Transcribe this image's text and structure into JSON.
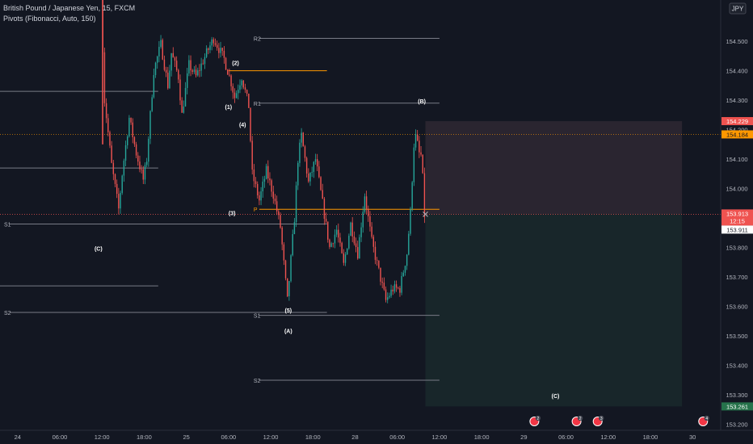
{
  "legend": {
    "symbol": "British Pound / Japanese Yen, 15, FXCM",
    "indicator": "Pivots (Fibonacci, Auto, 150)"
  },
  "currency_button": "JPY",
  "colors": {
    "background": "#131722",
    "up": "#26a69a",
    "down": "#ef5350",
    "text": "#d1d4dc",
    "axis_text": "#b2b5be",
    "pivot_line": "#787b86",
    "orange": "#ff9800",
    "stop_zone": "#2a2530",
    "target_zone": "#18262a",
    "target_badge": "#26734b"
  },
  "chart_data": {
    "type": "candlestick",
    "x_axis": {
      "unit": "hours",
      "ticks": [
        {
          "t": 0,
          "label": "24"
        },
        {
          "t": 6,
          "label": "06:00"
        },
        {
          "t": 12,
          "label": "12:00"
        },
        {
          "t": 18,
          "label": "18:00"
        },
        {
          "t": 24,
          "label": "25"
        },
        {
          "t": 30,
          "label": "06:00"
        },
        {
          "t": 36,
          "label": "12:00"
        },
        {
          "t": 42,
          "label": "18:00"
        },
        {
          "t": 48,
          "label": "28"
        },
        {
          "t": 54,
          "label": "06:00"
        },
        {
          "t": 60,
          "label": "12:00"
        },
        {
          "t": 66,
          "label": "18:00"
        },
        {
          "t": 72,
          "label": "29"
        },
        {
          "t": 78,
          "label": "06:00"
        },
        {
          "t": 84,
          "label": "12:00"
        },
        {
          "t": 90,
          "label": "18:00"
        },
        {
          "t": 96,
          "label": "30"
        }
      ],
      "range": [
        -2.5,
        100
      ]
    },
    "y_axis": {
      "range": [
        153.18,
        154.64
      ],
      "ticks": [
        154.5,
        154.4,
        154.3,
        154.2,
        154.1,
        154.0,
        153.9,
        153.8,
        153.7,
        153.6,
        153.5,
        153.4,
        153.3,
        153.2
      ]
    },
    "price_path": [
      {
        "t": 12.0,
        "p": 154.66
      },
      {
        "t": 12.5,
        "p": 154.3
      },
      {
        "t": 13.5,
        "p": 154.08
      },
      {
        "t": 14.5,
        "p": 153.93
      },
      {
        "t": 15.0,
        "p": 154.05
      },
      {
        "t": 16.0,
        "p": 154.24
      },
      {
        "t": 17.0,
        "p": 154.12
      },
      {
        "t": 18.0,
        "p": 154.03
      },
      {
        "t": 18.5,
        "p": 154.1
      },
      {
        "t": 19.5,
        "p": 154.4
      },
      {
        "t": 20.5,
        "p": 154.49
      },
      {
        "t": 21.5,
        "p": 154.35
      },
      {
        "t": 22.0,
        "p": 154.46
      },
      {
        "t": 23.0,
        "p": 154.38
      },
      {
        "t": 23.5,
        "p": 154.25
      },
      {
        "t": 24.5,
        "p": 154.42
      },
      {
        "t": 25.5,
        "p": 154.38
      },
      {
        "t": 27.0,
        "p": 154.46
      },
      {
        "t": 28.0,
        "p": 154.51
      },
      {
        "t": 29.5,
        "p": 154.44
      },
      {
        "t": 30.5,
        "p": 154.36
      },
      {
        "t": 31.0,
        "p": 154.31
      },
      {
        "t": 32.0,
        "p": 154.38
      },
      {
        "t": 33.0,
        "p": 154.28
      },
      {
        "t": 33.5,
        "p": 154.05
      },
      {
        "t": 34.5,
        "p": 153.96
      },
      {
        "t": 35.5,
        "p": 154.06
      },
      {
        "t": 36.5,
        "p": 153.98
      },
      {
        "t": 37.5,
        "p": 153.87
      },
      {
        "t": 38.5,
        "p": 153.62
      },
      {
        "t": 39.5,
        "p": 153.9
      },
      {
        "t": 40.0,
        "p": 154.1
      },
      {
        "t": 40.5,
        "p": 154.18
      },
      {
        "t": 41.5,
        "p": 154.02
      },
      {
        "t": 42.5,
        "p": 154.1
      },
      {
        "t": 43.5,
        "p": 153.95
      },
      {
        "t": 44.5,
        "p": 153.8
      },
      {
        "t": 45.5,
        "p": 153.86
      },
      {
        "t": 46.5,
        "p": 153.74
      },
      {
        "t": 47.5,
        "p": 153.88
      },
      {
        "t": 48.5,
        "p": 153.78
      },
      {
        "t": 49.5,
        "p": 153.98
      },
      {
        "t": 50.5,
        "p": 153.82
      },
      {
        "t": 51.5,
        "p": 153.72
      },
      {
        "t": 52.5,
        "p": 153.62
      },
      {
        "t": 53.5,
        "p": 153.66
      },
      {
        "t": 54.5,
        "p": 153.66
      },
      {
        "t": 55.5,
        "p": 153.78
      },
      {
        "t": 56.0,
        "p": 153.92
      },
      {
        "t": 56.5,
        "p": 154.15
      },
      {
        "t": 56.8,
        "p": 154.18
      },
      {
        "t": 57.2,
        "p": 154.12
      },
      {
        "t": 57.6,
        "p": 154.11
      },
      {
        "t": 58.0,
        "p": 153.91
      }
    ],
    "pivot_levels": [
      {
        "label": "R2",
        "price": 154.51,
        "t_start": 33,
        "t_end": 60
      },
      {
        "label": "R1",
        "price": 154.29,
        "t_start": 33,
        "t_end": 60
      },
      {
        "label": "P",
        "price": 153.93,
        "t_start": 33,
        "t_end": 60
      },
      {
        "label": "S1",
        "price": 153.57,
        "t_start": 33,
        "t_end": 60
      },
      {
        "label": "S2",
        "price": 153.35,
        "t_start": 33,
        "t_end": 60
      },
      {
        "label": "S1",
        "price": 153.88,
        "t_start": -2.5,
        "t_end": 44
      },
      {
        "label": "S2",
        "price": 153.58,
        "t_start": -2.5,
        "t_end": 44
      }
    ],
    "prior_levels": [
      {
        "price": 154.33,
        "t_start": -2.5,
        "t_end": 20
      },
      {
        "price": 154.07,
        "t_start": -2.5,
        "t_end": 20
      },
      {
        "price": 153.67,
        "t_start": -2.5,
        "t_end": 20
      }
    ],
    "orange_levels": [
      {
        "price": 154.4,
        "t_start": 30,
        "t_end": 44
      }
    ],
    "wave_labels": [
      {
        "label": "(A)",
        "t": 8.5,
        "p": 154.68
      },
      {
        "label": "(C)",
        "t": 11.5,
        "p": 153.79
      },
      {
        "label": "(2)",
        "t": 31.0,
        "p": 154.42
      },
      {
        "label": "(1)",
        "t": 30.0,
        "p": 154.27
      },
      {
        "label": "(4)",
        "t": 32.0,
        "p": 154.21
      },
      {
        "label": "(3)",
        "t": 30.5,
        "p": 153.91
      },
      {
        "label": "(5)",
        "t": 38.5,
        "p": 153.58
      },
      {
        "label": "(A)",
        "t": 38.5,
        "p": 153.51
      },
      {
        "label": "(B)",
        "t": 57.5,
        "p": 154.29
      },
      {
        "label": "(C)",
        "t": 76.5,
        "p": 153.29
      }
    ],
    "position": {
      "entry": 153.913,
      "stop": 154.229,
      "target": 153.261,
      "t_start": 58.0,
      "t_end": 94.5
    },
    "price_labels": {
      "stop": "154.229",
      "orange": "154.184",
      "orange_price": 154.184,
      "current": "153.913",
      "countdown": "12:15",
      "line": "153.911",
      "target": "153.261"
    },
    "events": [
      {
        "t": 73.5,
        "badge": "2"
      },
      {
        "t": 79.5,
        "badge": "2"
      },
      {
        "t": 82.5,
        "badge": "3"
      },
      {
        "t": 97.5,
        "badge": "4"
      }
    ]
  }
}
